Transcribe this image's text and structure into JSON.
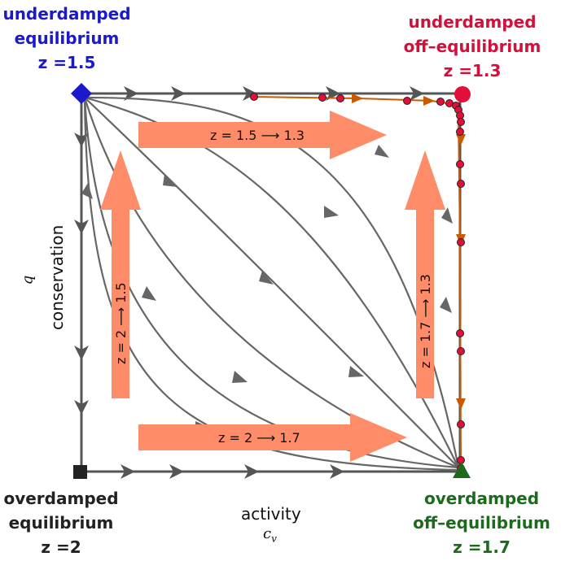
{
  "corners": {
    "top_left": {
      "line1": "underdamped",
      "line2": "equilibrium",
      "line3": "z =1.5",
      "color": "#1a1acc"
    },
    "top_right": {
      "line1": "underdamped",
      "line2": "off–equilibrium",
      "line3": "z =1.3",
      "color": "#d4103a"
    },
    "bottom_left": {
      "line1": "overdamped",
      "line2": "equilibrium",
      "line3": "z =2",
      "color": "#222222"
    },
    "bottom_right": {
      "line1": "overdamped",
      "line2": "off–equilibrium",
      "line3": "z =1.7",
      "color": "#1c6b1c"
    }
  },
  "axes": {
    "x_title": "activity",
    "x_symbol": "c_v",
    "y_title": "conservation",
    "y_symbol": "q"
  },
  "transitions": {
    "top": "z = 1.5  ⟶  1.3",
    "bottom": "z = 2  ⟶  1.7",
    "left": "z = 2  ⟶ 1.5",
    "right": "z = 1.7  ⟶  1.3"
  },
  "colors": {
    "flow": "#666666",
    "transition_arrow": "#ff8c69",
    "trajectory": "#c85a00",
    "trajectory_points": "#e0103a"
  }
}
